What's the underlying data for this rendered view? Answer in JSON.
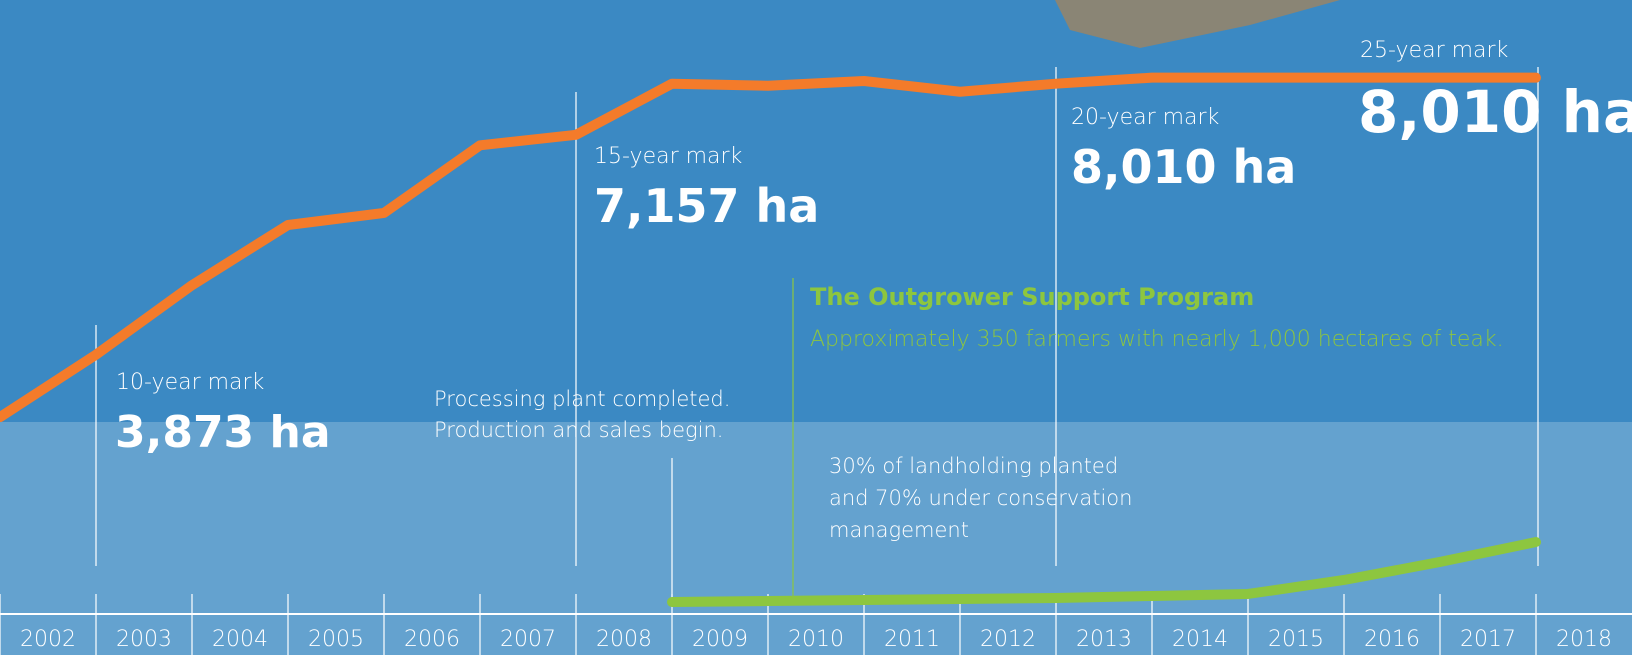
{
  "chart_data": {
    "type": "line",
    "categories": [
      "2002",
      "2003",
      "2004",
      "2005",
      "2006",
      "2007",
      "2008",
      "2009",
      "2010",
      "2011",
      "2012",
      "2013",
      "2014",
      "2015",
      "2016",
      "2017",
      "2018"
    ],
    "ylim": [
      0,
      9170
    ],
    "series": [
      {
        "color": "#f47b2a",
        "values": [
          2940,
          3873,
          4910,
          5810,
          5990,
          7000,
          7157,
          7920,
          7890,
          7960,
          7800,
          7920,
          8010,
          8010,
          8010,
          8010,
          8010
        ]
      },
      {
        "color": "#8dc63f",
        "values": [
          null,
          null,
          null,
          null,
          null,
          null,
          null,
          179,
          194,
          209,
          224,
          239,
          269,
          299,
          508,
          777,
          1075
        ]
      }
    ],
    "annotations": {
      "mark10": {
        "label": "10-year mark",
        "value": "3,873 ha"
      },
      "mark15": {
        "label": "15-year mark",
        "value": "7,157 ha"
      },
      "mark20": {
        "label": "20-year mark",
        "value": "8,010 ha"
      },
      "mark25": {
        "label": "25-year mark",
        "value": "8,010 ha"
      },
      "plant": [
        "Processing plant completed.",
        "Production and sales begin."
      ],
      "outgrower_title": "The Outgrower Support Program",
      "outgrower_text": "Approximately 350 farmers with nearly 1,000 hectares of teak.",
      "land": [
        "30% of landholding planted",
        "and 70% under conservation",
        "management"
      ]
    }
  }
}
